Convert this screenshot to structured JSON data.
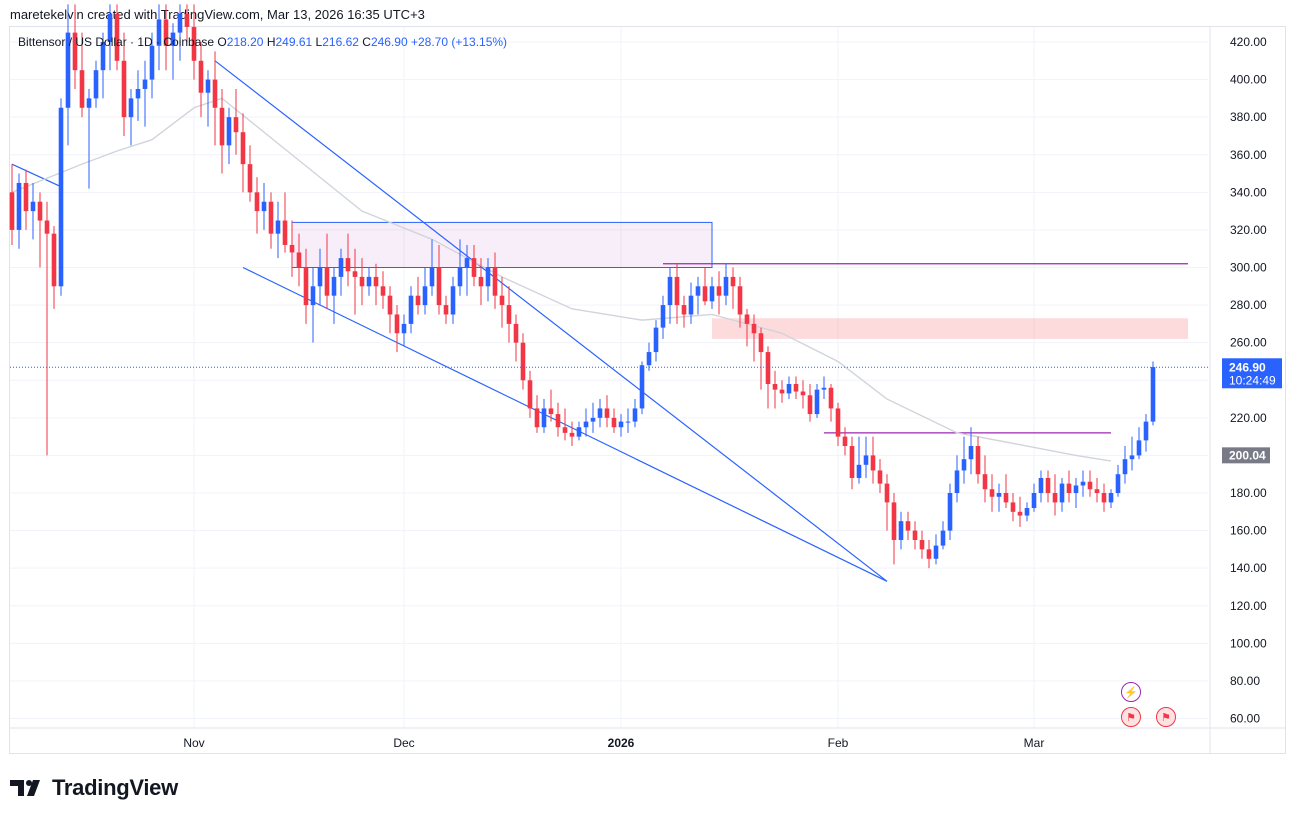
{
  "header": {
    "text": "maretekelvin created with TradingView.com, Mar 13, 2026 16:35 UTC+3"
  },
  "legend": {
    "symbol": "Bittensor / US Dollar · 1D · Coinbase",
    "o_label": "O",
    "o": "218.20",
    "h_label": "H",
    "h": "249.61",
    "l_label": "L",
    "l": "216.62",
    "c_label": "C",
    "c": "246.90",
    "change": "+28.70 (+13.15%)"
  },
  "price_tag": {
    "price": "246.90",
    "timer": "10:24:49",
    "color": "#2962ff"
  },
  "ma_tag": {
    "price": "200.04",
    "color": "#787b86"
  },
  "brand": {
    "name": "TradingView"
  },
  "colors": {
    "up": "#2962ff",
    "down": "#f23645",
    "ma": "#d1d4dc",
    "purple": "#9c27b0",
    "grid": "#f0f3fa"
  },
  "chart_data": {
    "type": "candlestick",
    "title": "Bittensor / US Dollar · 1D · Coinbase",
    "ylim": [
      50,
      430
    ],
    "y_ticks": [
      "420.00",
      "400.00",
      "380.00",
      "360.00",
      "340.00",
      "320.00",
      "300.00",
      "280.00",
      "260.00",
      "240.00",
      "220.00",
      "200.00",
      "180.00",
      "160.00",
      "140.00",
      "120.00",
      "100.00",
      "80.00",
      "60.00"
    ],
    "x_ticks": [
      {
        "label": "Nov",
        "index": 26
      },
      {
        "label": "Dec",
        "index": 56
      },
      {
        "label": "2026",
        "index": 87
      },
      {
        "label": "Feb",
        "index": 118
      },
      {
        "label": "Mar",
        "index": 146
      }
    ],
    "candles": [
      [
        340,
        355,
        312,
        320
      ],
      [
        320,
        350,
        310,
        345
      ],
      [
        345,
        352,
        320,
        330
      ],
      [
        330,
        345,
        315,
        335
      ],
      [
        335,
        340,
        300,
        325
      ],
      [
        325,
        335,
        200,
        318
      ],
      [
        318,
        322,
        278,
        290
      ],
      [
        290,
        390,
        285,
        385
      ],
      [
        385,
        440,
        365,
        425
      ],
      [
        425,
        445,
        395,
        405
      ],
      [
        405,
        425,
        380,
        385
      ],
      [
        385,
        395,
        342,
        390
      ],
      [
        390,
        410,
        385,
        405
      ],
      [
        405,
        425,
        390,
        420
      ],
      [
        420,
        440,
        405,
        435
      ],
      [
        435,
        445,
        405,
        410
      ],
      [
        410,
        425,
        370,
        380
      ],
      [
        380,
        395,
        365,
        390
      ],
      [
        390,
        405,
        378,
        395
      ],
      [
        395,
        410,
        375,
        400
      ],
      [
        400,
        425,
        390,
        418
      ],
      [
        418,
        445,
        405,
        432
      ],
      [
        432,
        440,
        405,
        418
      ],
      [
        418,
        430,
        400,
        425
      ],
      [
        425,
        440,
        410,
        435
      ],
      [
        435,
        450,
        420,
        428
      ],
      [
        428,
        440,
        400,
        410
      ],
      [
        410,
        420,
        380,
        393
      ],
      [
        393,
        405,
        375,
        400
      ],
      [
        400,
        415,
        365,
        385
      ],
      [
        385,
        395,
        350,
        365
      ],
      [
        365,
        385,
        355,
        380
      ],
      [
        380,
        395,
        360,
        372
      ],
      [
        372,
        382,
        340,
        355
      ],
      [
        355,
        365,
        335,
        340
      ],
      [
        340,
        348,
        318,
        330
      ],
      [
        330,
        345,
        320,
        335
      ],
      [
        335,
        340,
        310,
        318
      ],
      [
        318,
        335,
        305,
        325
      ],
      [
        325,
        340,
        308,
        312
      ],
      [
        312,
        325,
        295,
        308
      ],
      [
        308,
        318,
        290,
        300
      ],
      [
        300,
        310,
        270,
        280
      ],
      [
        280,
        300,
        260,
        290
      ],
      [
        290,
        310,
        280,
        300
      ],
      [
        300,
        318,
        278,
        285
      ],
      [
        285,
        300,
        270,
        295
      ],
      [
        295,
        310,
        285,
        305
      ],
      [
        305,
        318,
        290,
        298
      ],
      [
        298,
        310,
        275,
        295
      ],
      [
        295,
        305,
        280,
        290
      ],
      [
        290,
        300,
        285,
        295
      ],
      [
        295,
        302,
        280,
        290
      ],
      [
        290,
        298,
        278,
        285
      ],
      [
        285,
        290,
        265,
        275
      ],
      [
        275,
        280,
        255,
        265
      ],
      [
        265,
        275,
        258,
        270
      ],
      [
        270,
        290,
        265,
        285
      ],
      [
        285,
        295,
        275,
        280
      ],
      [
        280,
        300,
        275,
        290
      ],
      [
        290,
        315,
        285,
        300
      ],
      [
        300,
        312,
        275,
        280
      ],
      [
        280,
        285,
        270,
        275
      ],
      [
        275,
        295,
        270,
        290
      ],
      [
        290,
        315,
        285,
        300
      ],
      [
        300,
        312,
        285,
        305
      ],
      [
        305,
        312,
        290,
        295
      ],
      [
        295,
        305,
        280,
        290
      ],
      [
        290,
        305,
        282,
        300
      ],
      [
        300,
        308,
        278,
        285
      ],
      [
        285,
        295,
        268,
        280
      ],
      [
        280,
        290,
        260,
        270
      ],
      [
        270,
        275,
        250,
        260
      ],
      [
        260,
        265,
        235,
        240
      ],
      [
        240,
        245,
        220,
        225
      ],
      [
        225,
        232,
        212,
        215
      ],
      [
        215,
        230,
        212,
        225
      ],
      [
        225,
        235,
        218,
        222
      ],
      [
        222,
        228,
        210,
        215
      ],
      [
        215,
        225,
        208,
        212
      ],
      [
        212,
        218,
        205,
        210
      ],
      [
        210,
        218,
        208,
        215
      ],
      [
        215,
        225,
        210,
        218
      ],
      [
        218,
        228,
        212,
        220
      ],
      [
        220,
        230,
        215,
        225
      ],
      [
        225,
        232,
        215,
        220
      ],
      [
        220,
        225,
        212,
        215
      ],
      [
        215,
        222,
        210,
        218
      ],
      [
        218,
        225,
        212,
        218
      ],
      [
        218,
        230,
        215,
        225
      ],
      [
        225,
        250,
        222,
        248
      ],
      [
        248,
        260,
        245,
        255
      ],
      [
        255,
        272,
        250,
        268
      ],
      [
        268,
        285,
        262,
        280
      ],
      [
        280,
        300,
        270,
        295
      ],
      [
        295,
        302,
        270,
        280
      ],
      [
        280,
        285,
        268,
        275
      ],
      [
        275,
        292,
        270,
        285
      ],
      [
        285,
        295,
        275,
        290
      ],
      [
        290,
        300,
        280,
        282
      ],
      [
        282,
        295,
        278,
        290
      ],
      [
        290,
        298,
        275,
        285
      ],
      [
        285,
        302,
        280,
        295
      ],
      [
        295,
        300,
        278,
        290
      ],
      [
        290,
        295,
        268,
        275
      ],
      [
        275,
        278,
        258,
        270
      ],
      [
        270,
        275,
        250,
        265
      ],
      [
        265,
        268,
        235,
        255
      ],
      [
        255,
        258,
        225,
        238
      ],
      [
        238,
        245,
        225,
        235
      ],
      [
        235,
        240,
        228,
        233
      ],
      [
        233,
        242,
        230,
        238
      ],
      [
        238,
        242,
        230,
        234
      ],
      [
        234,
        240,
        225,
        232
      ],
      [
        232,
        238,
        218,
        222
      ],
      [
        222,
        238,
        220,
        235
      ],
      [
        235,
        242,
        230,
        236
      ],
      [
        236,
        238,
        218,
        225
      ],
      [
        225,
        228,
        205,
        210
      ],
      [
        210,
        215,
        200,
        205
      ],
      [
        205,
        210,
        182,
        188
      ],
      [
        188,
        210,
        185,
        195
      ],
      [
        195,
        210,
        188,
        200
      ],
      [
        200,
        210,
        185,
        192
      ],
      [
        192,
        198,
        180,
        185
      ],
      [
        185,
        190,
        160,
        175
      ],
      [
        175,
        180,
        142,
        155
      ],
      [
        155,
        170,
        150,
        165
      ],
      [
        165,
        170,
        155,
        160
      ],
      [
        160,
        165,
        150,
        155
      ],
      [
        155,
        160,
        145,
        150
      ],
      [
        150,
        155,
        140,
        145
      ],
      [
        145,
        158,
        142,
        152
      ],
      [
        152,
        165,
        150,
        160
      ],
      [
        160,
        185,
        155,
        180
      ],
      [
        180,
        200,
        175,
        192
      ],
      [
        192,
        210,
        185,
        198
      ],
      [
        198,
        215,
        190,
        205
      ],
      [
        205,
        210,
        185,
        190
      ],
      [
        190,
        200,
        175,
        182
      ],
      [
        182,
        190,
        170,
        178
      ],
      [
        178,
        185,
        170,
        180
      ],
      [
        180,
        190,
        172,
        175
      ],
      [
        175,
        180,
        165,
        170
      ],
      [
        170,
        178,
        162,
        168
      ],
      [
        168,
        175,
        165,
        172
      ],
      [
        172,
        185,
        170,
        180
      ],
      [
        180,
        192,
        175,
        188
      ],
      [
        188,
        192,
        175,
        180
      ],
      [
        180,
        190,
        168,
        175
      ],
      [
        175,
        188,
        170,
        185
      ],
      [
        185,
        192,
        175,
        180
      ],
      [
        180,
        188,
        172,
        184
      ],
      [
        184,
        192,
        178,
        186
      ],
      [
        186,
        192,
        178,
        182
      ],
      [
        182,
        188,
        175,
        180
      ],
      [
        180,
        185,
        170,
        175
      ],
      [
        175,
        182,
        172,
        180
      ],
      [
        180,
        195,
        178,
        190
      ],
      [
        190,
        205,
        185,
        198
      ],
      [
        198,
        210,
        192,
        200
      ],
      [
        200,
        215,
        198,
        208
      ],
      [
        208,
        222,
        202,
        218
      ],
      [
        218,
        250,
        216,
        247
      ]
    ],
    "moving_average": [
      [
        0,
        340
      ],
      [
        10,
        355
      ],
      [
        15,
        362
      ],
      [
        20,
        368
      ],
      [
        26,
        385
      ],
      [
        30,
        390
      ],
      [
        40,
        360
      ],
      [
        50,
        330
      ],
      [
        60,
        315
      ],
      [
        70,
        295
      ],
      [
        80,
        278
      ],
      [
        90,
        272
      ],
      [
        100,
        275
      ],
      [
        110,
        265
      ],
      [
        118,
        250
      ],
      [
        125,
        230
      ],
      [
        135,
        212
      ],
      [
        145,
        205
      ],
      [
        152,
        200
      ],
      [
        157,
        197
      ]
    ],
    "annotations": {
      "supply_box": {
        "x1": 40,
        "x2": 100,
        "y1": 300,
        "y2": 324
      },
      "resistance_zone": {
        "x1": 100,
        "x2": 168,
        "y1": 262,
        "y2": 273
      },
      "resistance_line": {
        "x1": 93,
        "x2": 168,
        "y": 302
      },
      "breakout_line": {
        "x1": 116,
        "x2": 157,
        "y": 212
      },
      "wedge_upper": {
        "x1": 29,
        "y1": 410,
        "x2": 125,
        "y2": 133
      },
      "wedge_lower": {
        "x1": 33,
        "y1": 300,
        "x2": 125,
        "y2": 133
      },
      "early_trend": {
        "x1": 0,
        "y1": 355,
        "x2": 7,
        "y2": 343
      }
    }
  }
}
